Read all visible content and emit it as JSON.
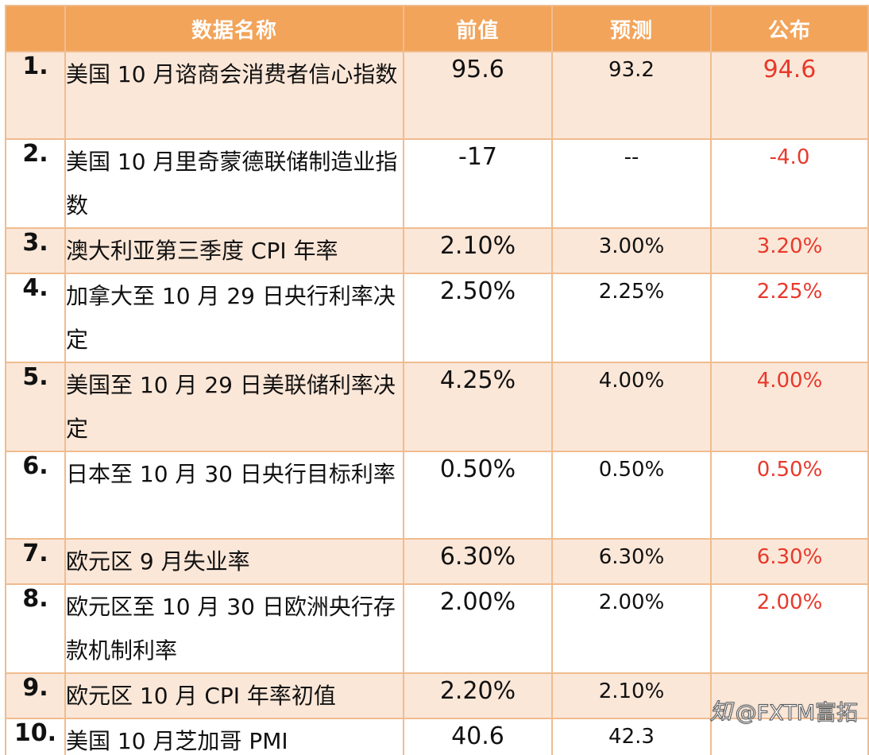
{
  "header": {
    "name": "数据名称",
    "prev": "前值",
    "forecast": "预测",
    "published": "公布"
  },
  "rows": [
    {
      "num": "1.",
      "name": "美国 10 月谘商会消费者信心指数",
      "prev": "95.6",
      "forecast": "93.2",
      "published": "94.6"
    },
    {
      "num": "2.",
      "name": "美国 10 月里奇蒙德联储制造业指数",
      "prev": "-17",
      "forecast": "--",
      "published": "-4.0"
    },
    {
      "num": "3.",
      "name": "澳大利亚第三季度 CPI 年率",
      "prev": "2.10%",
      "forecast": "3.00%",
      "published": "3.20%"
    },
    {
      "num": "4.",
      "name": "加拿大至 10 月 29 日央行利率决定",
      "prev": "2.50%",
      "forecast": "2.25%",
      "published": "2.25%"
    },
    {
      "num": "5.",
      "name": "美国至 10 月 29 日美联储利率决定",
      "prev": "4.25%",
      "forecast": "4.00%",
      "published": "4.00%"
    },
    {
      "num": "6.",
      "name": "日本至 10 月 30 日央行目标利率",
      "prev": "0.50%",
      "forecast": "0.50%",
      "published": "0.50%"
    },
    {
      "num": "7.",
      "name": "欧元区 9 月失业率",
      "prev": "6.30%",
      "forecast": "6.30%",
      "published": "6.30%"
    },
    {
      "num": "8.",
      "name": "欧元区至 10 月 30 日欧洲央行存款机制利率",
      "prev": "2.00%",
      "forecast": "2.00%",
      "published": "2.00%"
    },
    {
      "num": "9.",
      "name": "欧元区 10 月 CPI 年率初值",
      "prev": "2.20%",
      "forecast": "2.10%",
      "published": ""
    },
    {
      "num": "10.",
      "name": "美国 10 月芝加哥 PMI",
      "prev": "40.6",
      "forecast": "42.3",
      "published": ""
    }
  ],
  "watermark": {
    "icon": "zhihu-icon",
    "text": "@FXTM富拓"
  },
  "colors": {
    "header_bg": "#f2a45a",
    "row_alt_bg": "#fbe7d8",
    "border": "#f0bc8f",
    "published_text": "#e8392b"
  }
}
